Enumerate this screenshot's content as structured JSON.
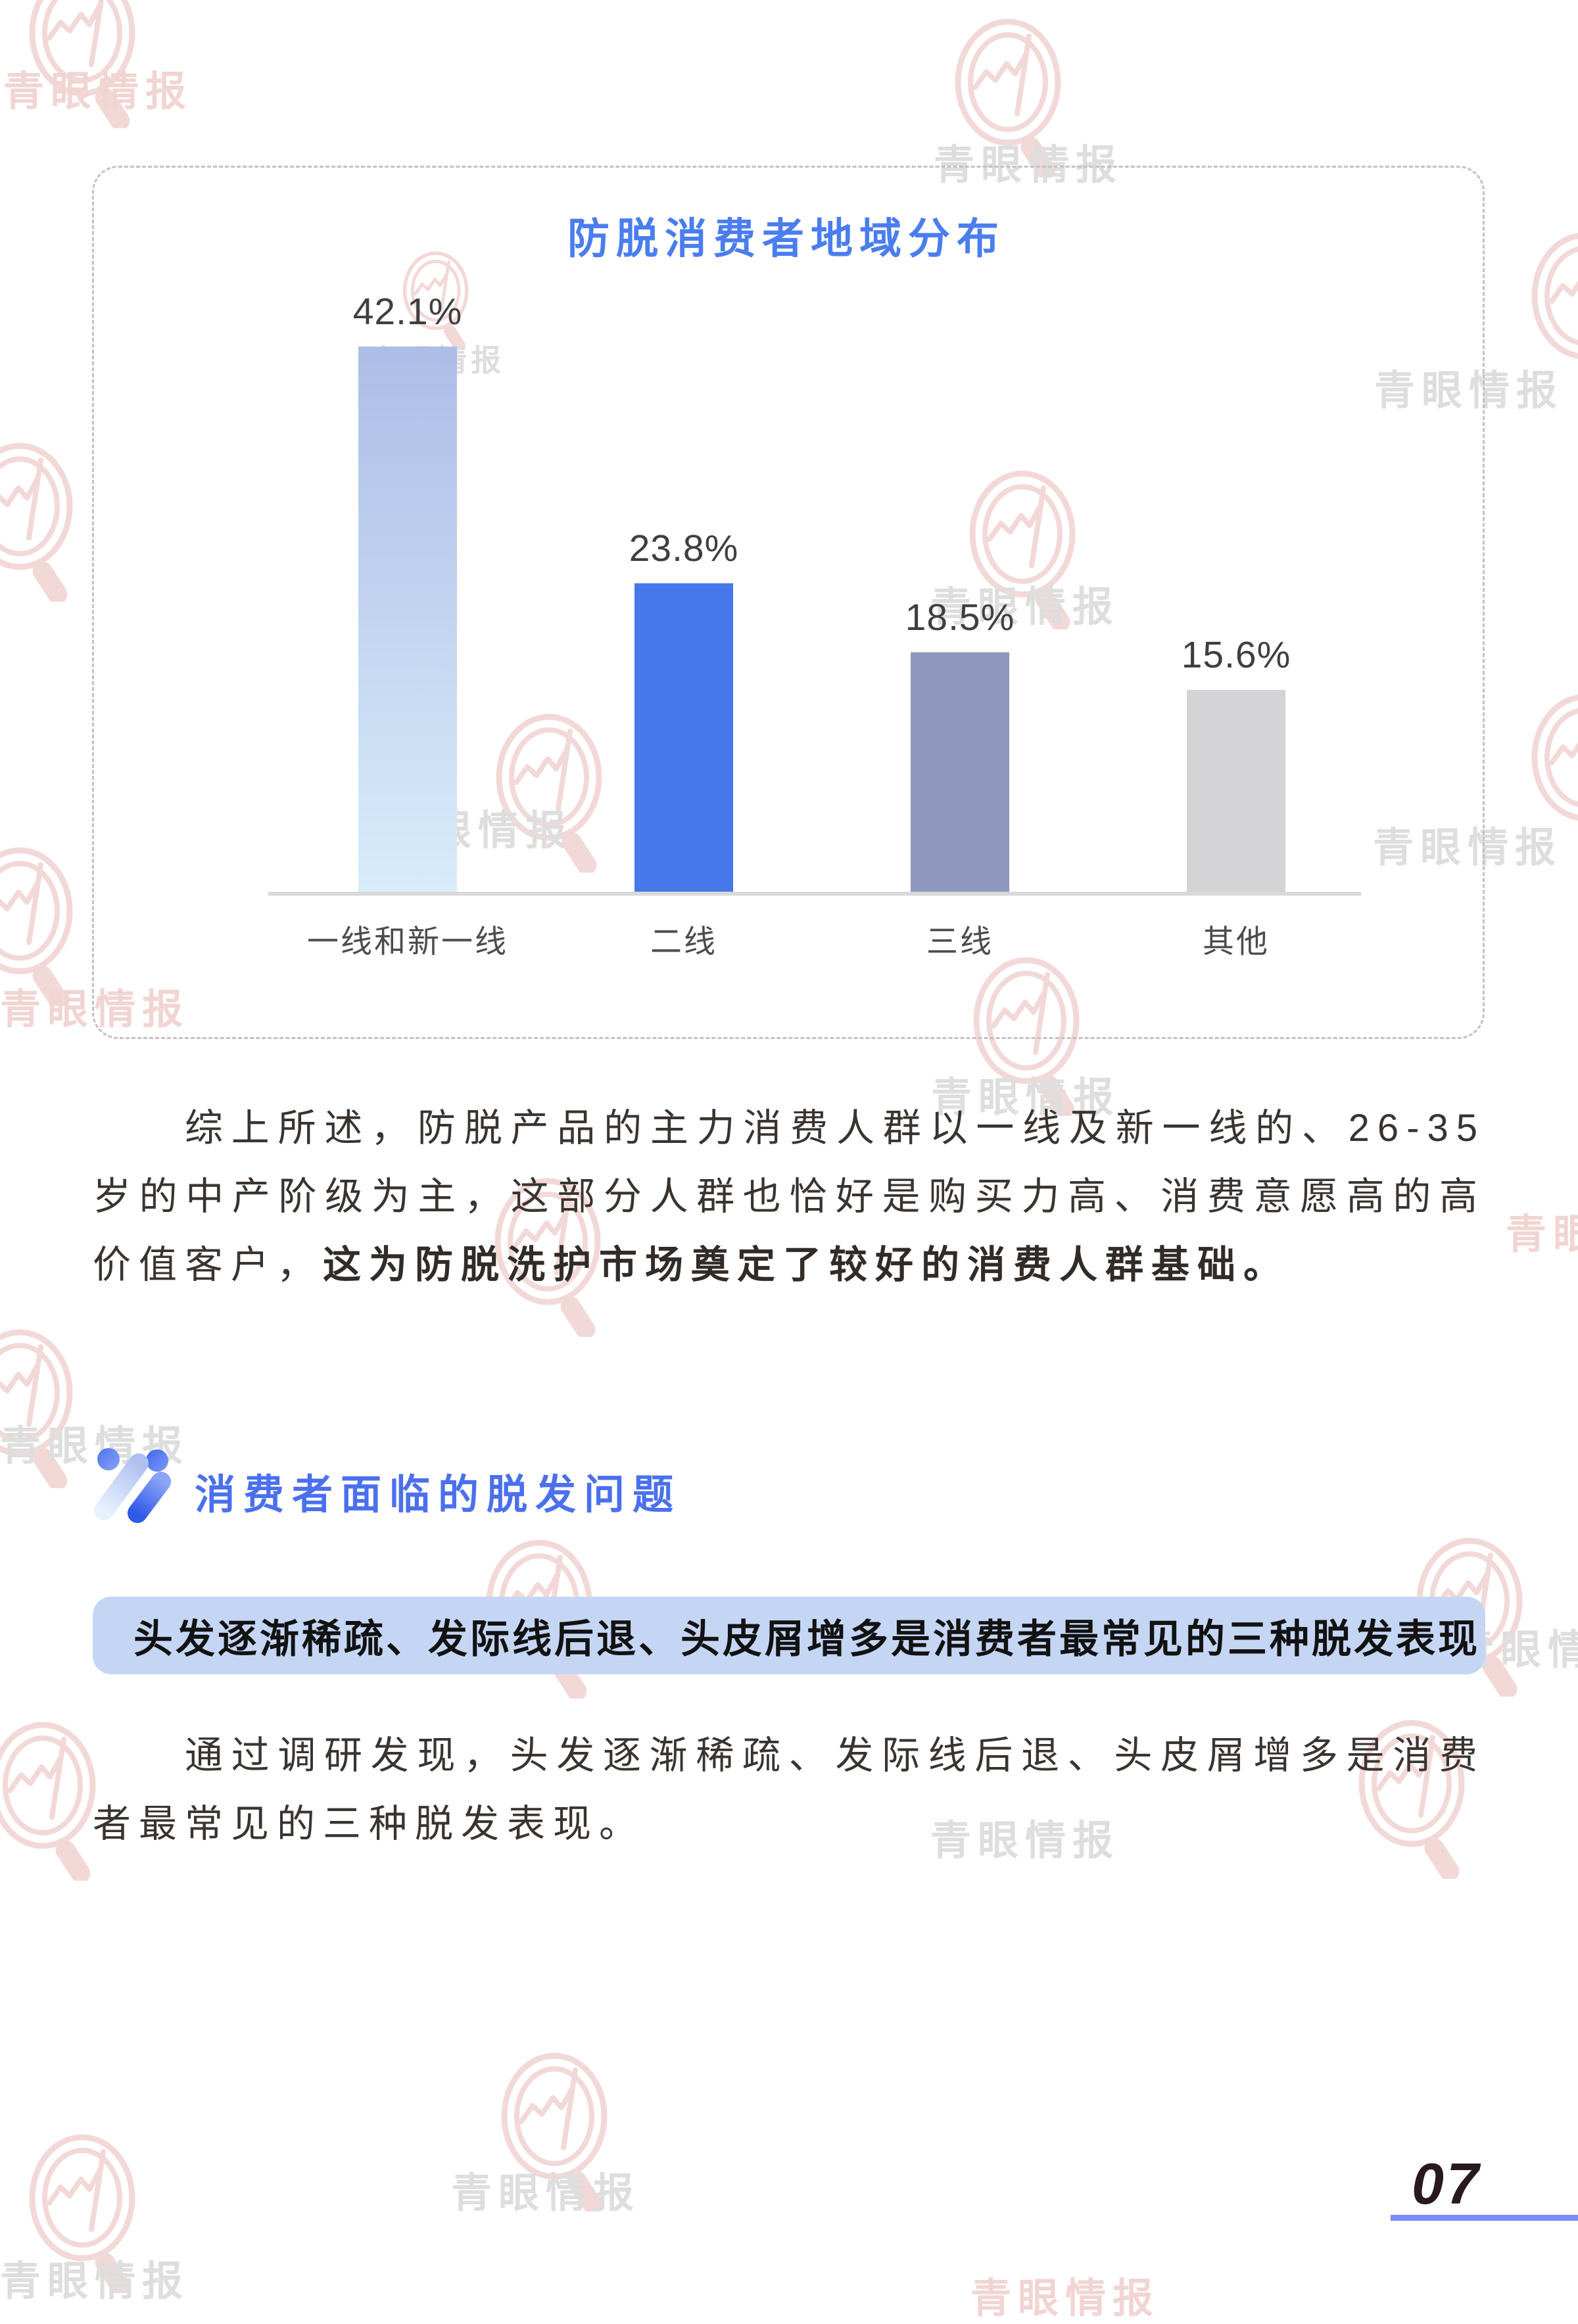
{
  "page": {
    "page_number": "07",
    "watermark_text": "青眼情报",
    "accent_line_color": "#7b8bf2"
  },
  "chart_data": {
    "type": "bar",
    "title": "防脱消费者地域分布",
    "title_color": "#4a7df0",
    "categories": [
      "一线和新一线",
      "二线",
      "三线",
      "其他"
    ],
    "values": [
      42.1,
      23.8,
      18.5,
      15.6
    ],
    "value_labels": [
      "42.1%",
      "23.8%",
      "18.5%",
      "15.6%"
    ],
    "unit": "%",
    "ylim": [
      0,
      45
    ],
    "grid": false,
    "legend": false,
    "bar_colors": [
      "linear-gradient(180deg, #aebde7 0%, #d9ecfa 100%)",
      "#4678ea",
      "#8e97bd",
      "#d4d4d6"
    ]
  },
  "paragraph1": {
    "normal": "综上所述，防脱产品的主力消费人群以一线及新一线的、26-35岁的中产阶级为主，这部分人群也恰好是购买力高、消费意愿高的高价值客户，",
    "bold": "这为防脱洗护市场奠定了较好的消费人群基础。"
  },
  "section": {
    "heading": "消费者面临的脱发问题",
    "highlight": "头发逐渐稀疏、发际线后退、头皮屑增多是消费者最常见的三种脱发表现"
  },
  "paragraph2": {
    "text": "通过调研发现，头发逐渐稀疏、发际线后退、头皮屑增多是消费者最常见的三种脱发表现。"
  }
}
